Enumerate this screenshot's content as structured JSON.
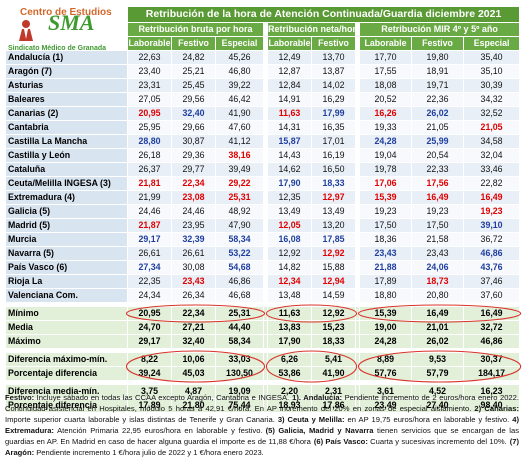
{
  "header": {
    "center": "Centro de Estudios",
    "logo": "SMA",
    "union": "Sindicato Médico de Granada"
  },
  "title": "Retribución de la hora de Atención Continuada/Guardia diciembre 2021",
  "groups": [
    "Retribución bruta por hora",
    "Retribución neta/hora",
    "Retribución MIR 4º y 5º año"
  ],
  "columns": [
    "Laborable",
    "Festivo",
    "Especial",
    "Laborable",
    "Festivo",
    "Laborable",
    "Festivo",
    "Especial"
  ],
  "rows": [
    {
      "label": "Andalucía (1)",
      "cells": [
        "22,63",
        "24,82",
        "45,26",
        "12,49",
        "13,70",
        "17,70",
        "19,80",
        "35,40"
      ],
      "colors": [
        "black",
        "black",
        "black",
        "black",
        "black",
        "black",
        "black",
        "black"
      ]
    },
    {
      "label": "Aragón (7)",
      "cells": [
        "23,40",
        "25,21",
        "46,80",
        "12,87",
        "13,87",
        "17,55",
        "18,91",
        "35,10"
      ],
      "colors": [
        "black",
        "black",
        "black",
        "black",
        "black",
        "black",
        "black",
        "black"
      ]
    },
    {
      "label": "Asturias",
      "cells": [
        "23,31",
        "25,45",
        "39,22",
        "12,84",
        "14,02",
        "18,08",
        "19,71",
        "30,39"
      ],
      "colors": [
        "black",
        "black",
        "black",
        "black",
        "black",
        "black",
        "black",
        "black"
      ]
    },
    {
      "label": "Baleares",
      "cells": [
        "27,05",
        "29,56",
        "46,42",
        "14,91",
        "16,29",
        "20,52",
        "22,36",
        "34,32"
      ],
      "colors": [
        "black",
        "black",
        "black",
        "black",
        "black",
        "black",
        "black",
        "black"
      ]
    },
    {
      "label": "Canarias (2)",
      "cells": [
        "20,95",
        "32,40",
        "41,90",
        "11,63",
        "17,99",
        "16,26",
        "26,02",
        "32,52"
      ],
      "colors": [
        "red",
        "blue",
        "black",
        "red",
        "blue",
        "red",
        "blue",
        "black"
      ]
    },
    {
      "label": "Cantabria",
      "cells": [
        "25,95",
        "29,66",
        "47,60",
        "14,31",
        "16,35",
        "19,33",
        "21,05",
        "21,05"
      ],
      "colors": [
        "black",
        "black",
        "black",
        "black",
        "black",
        "black",
        "black",
        "red"
      ]
    },
    {
      "label": "Castilla La Mancha",
      "cells": [
        "28,80",
        "30,87",
        "41,12",
        "15,87",
        "17,01",
        "24,28",
        "25,99",
        "34,58"
      ],
      "colors": [
        "blue",
        "black",
        "black",
        "blue",
        "black",
        "blue",
        "blue",
        "black"
      ]
    },
    {
      "label": "Castilla y León",
      "cells": [
        "26,18",
        "29,36",
        "38,16",
        "14,43",
        "16,19",
        "19,04",
        "20,54",
        "32,04"
      ],
      "colors": [
        "black",
        "black",
        "red",
        "black",
        "black",
        "black",
        "black",
        "black"
      ]
    },
    {
      "label": "Cataluña",
      "cells": [
        "26,37",
        "29,77",
        "39,49",
        "14,62",
        "16,50",
        "19,78",
        "22,33",
        "33,46"
      ],
      "colors": [
        "black",
        "black",
        "black",
        "black",
        "black",
        "black",
        "black",
        "black"
      ]
    },
    {
      "label": "Ceuta/Melilla INGESA (3)",
      "cells": [
        "21,81",
        "22,34",
        "29,22",
        "17,90",
        "18,33",
        "17,06",
        "17,56",
        "22,82"
      ],
      "colors": [
        "red",
        "red",
        "red",
        "blue",
        "blue",
        "red",
        "red",
        "black"
      ]
    },
    {
      "label": "Extremadura (4)",
      "cells": [
        "21,99",
        "23,08",
        "25,31",
        "12,35",
        "12,97",
        "15,39",
        "16,49",
        "16,49"
      ],
      "colors": [
        "black",
        "red",
        "red",
        "black",
        "red",
        "red",
        "red",
        "red"
      ]
    },
    {
      "label": "Galicia (5)",
      "cells": [
        "24,46",
        "24,46",
        "48,92",
        "13,49",
        "13,49",
        "19,23",
        "19,23",
        "19,23"
      ],
      "colors": [
        "black",
        "black",
        "black",
        "black",
        "black",
        "black",
        "black",
        "red"
      ]
    },
    {
      "label": "Madrid (5)",
      "cells": [
        "21,87",
        "23,95",
        "47,90",
        "12,05",
        "13,20",
        "17,50",
        "17,50",
        "39,10"
      ],
      "colors": [
        "red",
        "black",
        "black",
        "red",
        "black",
        "black",
        "black",
        "blue"
      ]
    },
    {
      "label": "Murcia",
      "cells": [
        "29,17",
        "32,39",
        "58,34",
        "16,08",
        "17,85",
        "18,36",
        "21,58",
        "36,72"
      ],
      "colors": [
        "blue",
        "blue",
        "blue",
        "blue",
        "blue",
        "black",
        "black",
        "black"
      ]
    },
    {
      "label": "Navarra (5)",
      "cells": [
        "26,61",
        "26,61",
        "53,22",
        "12,92",
        "12,92",
        "23,43",
        "23,43",
        "46,86"
      ],
      "colors": [
        "black",
        "black",
        "blue",
        "black",
        "red",
        "blue",
        "black",
        "blue"
      ]
    },
    {
      "label": "País Vasco (6)",
      "cells": [
        "27,34",
        "30,08",
        "54,68",
        "14,82",
        "15,88",
        "21,88",
        "24,06",
        "43,76"
      ],
      "colors": [
        "blue",
        "black",
        "blue",
        "black",
        "black",
        "blue",
        "blue",
        "blue"
      ]
    },
    {
      "label": "Rioja La",
      "cells": [
        "22,35",
        "23,43",
        "46,86",
        "12,34",
        "12,94",
        "17,89",
        "18,73",
        "37,46"
      ],
      "colors": [
        "black",
        "red",
        "black",
        "red",
        "red",
        "black",
        "red",
        "black"
      ]
    },
    {
      "label": "Valenciana Com.",
      "cells": [
        "24,34",
        "26,34",
        "46,68",
        "13,48",
        "14,59",
        "18,80",
        "20,80",
        "37,60"
      ],
      "colors": [
        "black",
        "black",
        "black",
        "black",
        "black",
        "black",
        "black",
        "black"
      ]
    }
  ],
  "summary": [
    {
      "label": "Mínimo",
      "cells": [
        "20,95",
        "22,34",
        "25,31",
        "11,63",
        "12,92",
        "15,39",
        "16,49",
        "16,49"
      ]
    },
    {
      "label": "Media",
      "cells": [
        "24,70",
        "27,21",
        "44,40",
        "13,83",
        "15,23",
        "19,00",
        "21,01",
        "32,72"
      ]
    },
    {
      "label": "Máximo",
      "cells": [
        "29,17",
        "32,40",
        "58,34",
        "17,90",
        "18,33",
        "24,28",
        "26,02",
        "46,86"
      ]
    },
    {
      "label": "Diferencia máximo-mín.",
      "cells": [
        "8,22",
        "10,06",
        "33,03",
        "6,26",
        "5,41",
        "8,89",
        "9,53",
        "30,37"
      ]
    },
    {
      "label": "Porcentaje diferencia",
      "cells": [
        "39,24",
        "45,03",
        "130,50",
        "53,86",
        "41,90",
        "57,76",
        "57,79",
        "184,17"
      ]
    },
    {
      "label": "Diferencia media-mín.",
      "cells": [
        "3,75",
        "4,87",
        "19,09",
        "2,20",
        "2,31",
        "3,61",
        "4,52",
        "16,23"
      ]
    },
    {
      "label": "Porcentaje diferencia",
      "cells": [
        "17,89",
        "21,80",
        "75,44",
        "18,93",
        "17,86",
        "23,49",
        "27,40",
        "98,40"
      ]
    }
  ],
  "notes": [
    {
      "bold": "Festivo:",
      "text": " Incluye sábado en todas las CCAA excepto Aragón, Cantabria e INGESA."
    },
    {
      "bold": "1). Andalucía:",
      "text": " Pendiente incremento de 2 euros/hora enero 2022. Continuidad asistencial en Hospitales, módulo 5 horas a 42,91 €/hora. En AP incremento del 20% en zonas de especial aislamiento."
    },
    {
      "bold": "2) Canarias:",
      "text": " Importe superior cuarta laborable y islas distintas de Tenerife y Gran Canaria."
    },
    {
      "bold": "3) Ceuta y Melilla:",
      "text": " en AP 19,75 euros/hora en laborable y festivo."
    },
    {
      "bold": "4) Extremadura:",
      "text": " Atención Primaria 22,95 euros/hora en laborable y festivo."
    },
    {
      "bold": "(5) Galicia, Madrid y Navarra",
      "text": " tienen servicios que se encargan de las guardias en AP. En Madrid en caso de hacer alguna guardia el importe es de 11,88 €/hora"
    },
    {
      "bold": "(6) País Vasco:",
      "text": " Cuarta y sucesivas incremento del 10%."
    },
    {
      "bold": "(7) Aragón:",
      "text": " Pendiente incremento 1 €/hora julio de 2022 y 1 €/hora enero 2023."
    }
  ]
}
